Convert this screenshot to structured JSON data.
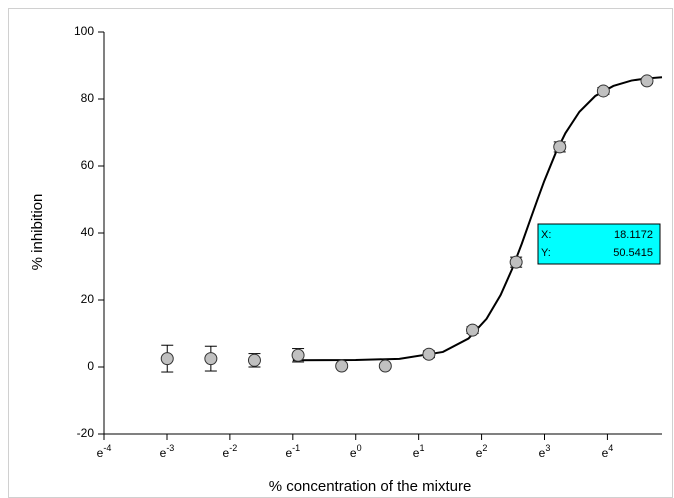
{
  "chart_data": {
    "type": "scatter",
    "xlabel": "% concentration of the mixture",
    "ylabel": "% inhibition",
    "xscale": "log",
    "x": [
      0.05,
      0.1,
      0.2,
      0.4,
      0.8,
      1.6,
      3.2,
      6.4,
      12.8,
      25.6,
      51.2,
      102.4
    ],
    "values": [
      2.5,
      2.5,
      2,
      3.5,
      0.3,
      0.3,
      3.8,
      11,
      31.3,
      65.7,
      82.4,
      85.4
    ],
    "errors": [
      4,
      3.7,
      2,
      2,
      0.5,
      0.5,
      1,
      1,
      1.5,
      1.5,
      1,
      0.8
    ],
    "color": "#c0c0c0",
    "fit": {
      "x": [
        0.368,
        1,
        2,
        4,
        6,
        8,
        10,
        12,
        14,
        16,
        18,
        20,
        24,
        28,
        35,
        45,
        60,
        80,
        100,
        130
      ],
      "values": [
        2.0,
        2.08,
        2.44,
        4.5,
        8.5,
        14.4,
        21.5,
        29.2,
        36.8,
        43.9,
        50.1,
        55.5,
        63.9,
        69.8,
        76.2,
        80.9,
        83.9,
        85.5,
        86.1,
        86.5
      ],
      "color": "#000000"
    },
    "annotation": {
      "x_label": "X:",
      "x_value": 18.1172,
      "y_label": "Y:",
      "y_value": 50.5415,
      "color": "#00ffff"
    },
    "xlim": [
      0.0183,
      130
    ],
    "ylim": [
      -20,
      100
    ],
    "xticks": [
      {
        "value": 0.0183,
        "label": "e-4"
      },
      {
        "value": 0.0498,
        "label": "e-3"
      },
      {
        "value": 0.1353,
        "label": "e-2"
      },
      {
        "value": 0.3679,
        "label": "e-1"
      },
      {
        "value": 1,
        "label": "e0"
      },
      {
        "value": 2.7183,
        "label": "e1"
      },
      {
        "value": 7.3891,
        "label": "e2"
      },
      {
        "value": 20.0855,
        "label": "e3"
      },
      {
        "value": 54.5982,
        "label": "e4"
      }
    ],
    "yticks": [
      -20,
      0,
      20,
      40,
      60,
      80,
      100
    ]
  }
}
